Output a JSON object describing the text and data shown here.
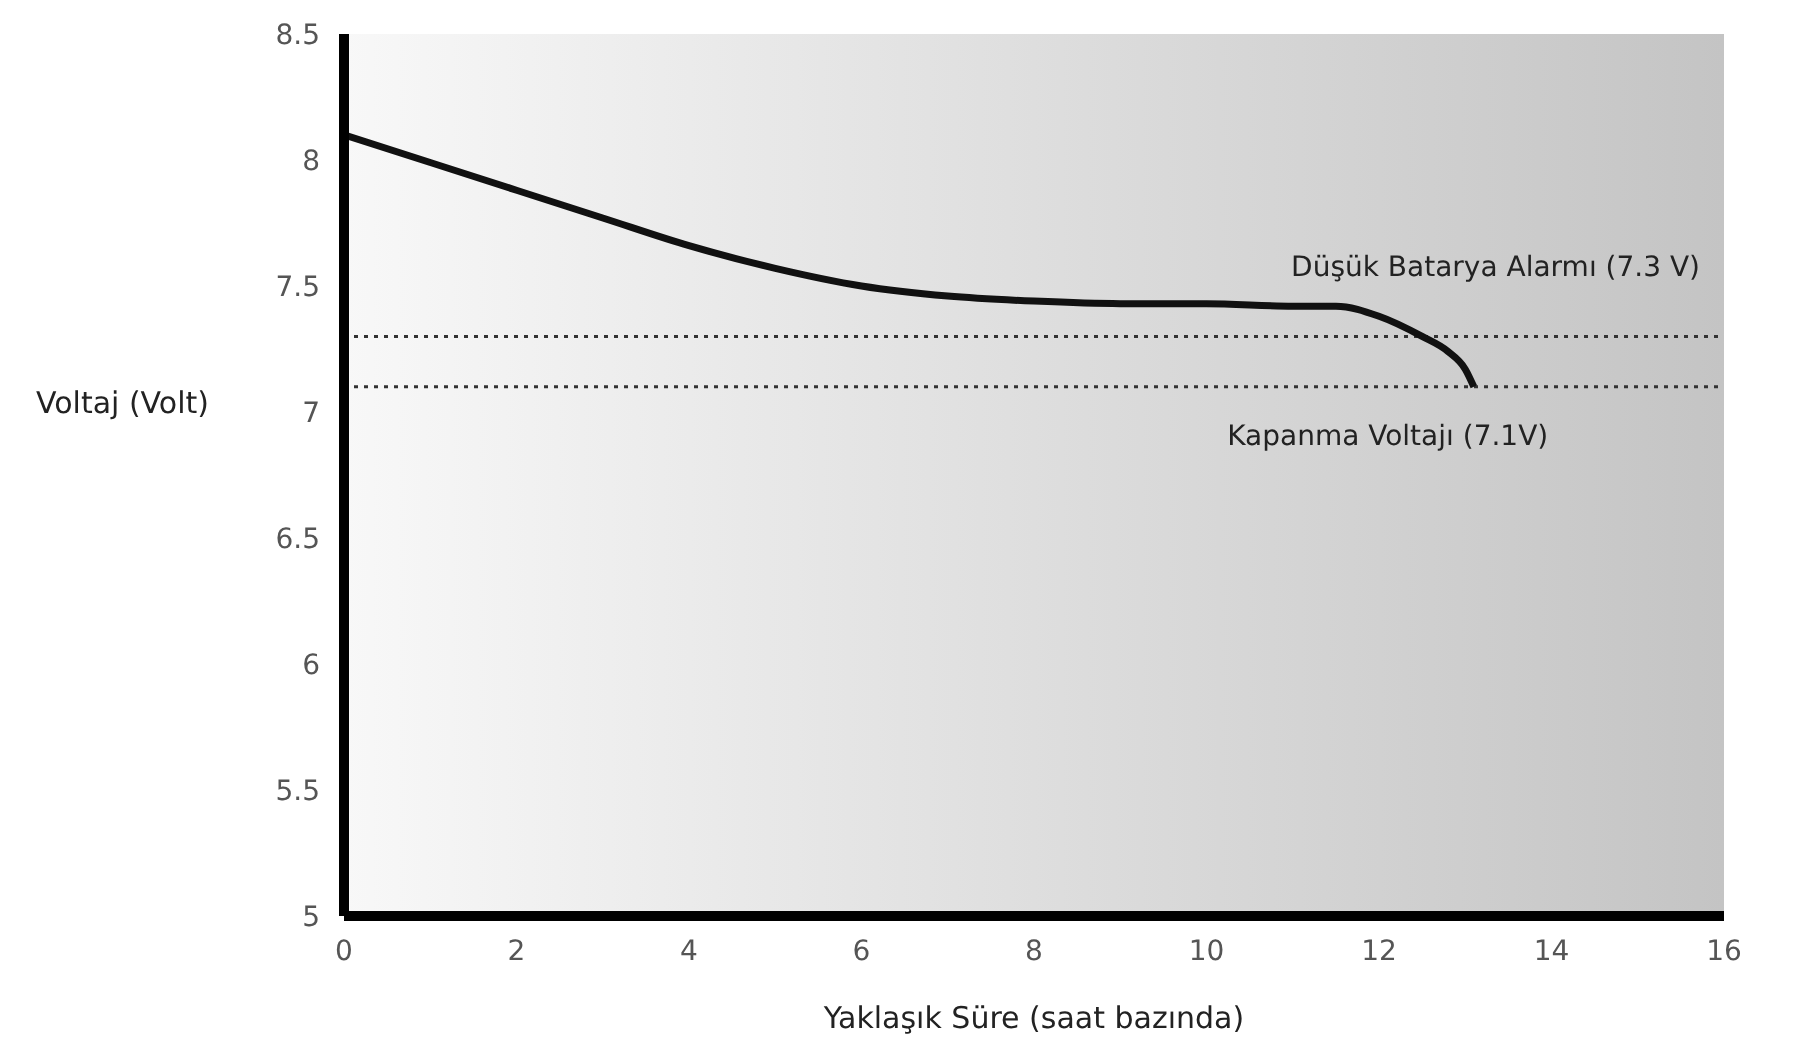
{
  "chart_data": {
    "type": "line",
    "xlabel": "Yaklaşık Süre (saat bazında)",
    "ylabel": "Voltaj (Volt)",
    "x": [
      0,
      1,
      2,
      3,
      4,
      5,
      6,
      7,
      8,
      9,
      10,
      11,
      11.5,
      12,
      12.5,
      12.8,
      13,
      13.1
    ],
    "series": [
      {
        "color": "#111111",
        "values": [
          8.1,
          7.99,
          7.88,
          7.77,
          7.66,
          7.57,
          7.5,
          7.46,
          7.44,
          7.43,
          7.43,
          7.42,
          7.42,
          7.38,
          7.3,
          7.24,
          7.17,
          7.1
        ]
      }
    ],
    "xlim": [
      0,
      16
    ],
    "xticks": [
      0,
      2,
      4,
      6,
      8,
      10,
      12,
      14,
      16
    ],
    "ylim": [
      5,
      8.5
    ],
    "yticks": [
      5,
      5.5,
      6,
      6.5,
      7,
      7.5,
      8,
      8.5
    ],
    "ref_lines": [
      {
        "axis": "y",
        "value": 7.3,
        "label": "Düşük Batarya Alarmı (7.3 V)",
        "color": "#333333",
        "line_style": "dotted"
      },
      {
        "axis": "y",
        "value": 7.1,
        "label": "Kapanma Voltajı (7.1V)",
        "color": "#333333",
        "line_style": "dotted"
      }
    ],
    "grid": false,
    "marker": "none",
    "line_style": "solid"
  }
}
